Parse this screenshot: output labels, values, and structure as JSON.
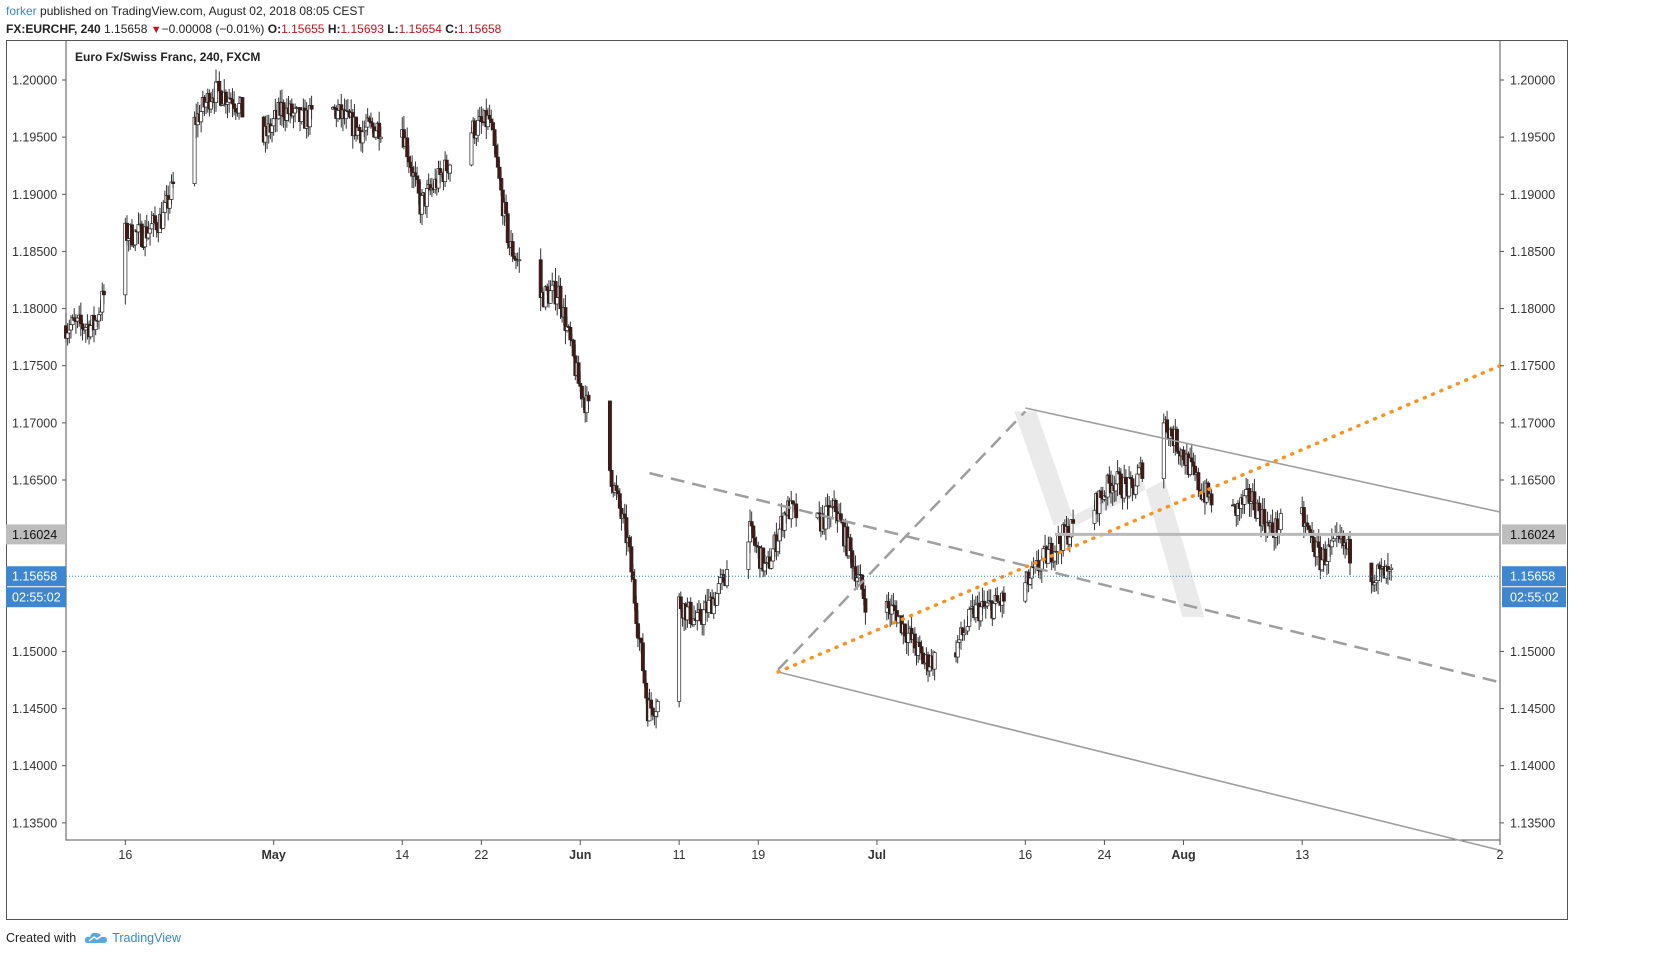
{
  "header": {
    "author": "forker",
    "published_text": "published on TradingView.com, August 02, 2018 08:05 CEST",
    "symbol": "FX:EURCHF, 240",
    "last": "1.15658",
    "change": "−0.00008 (−0.01%)",
    "o_label": "O:",
    "o_value": "1.15655",
    "h_label": "H:",
    "h_value": "1.15693",
    "l_label": "L:",
    "l_value": "1.15654",
    "c_label": "C:",
    "c_value": "1.15658"
  },
  "footer": {
    "created_with": "Created with",
    "brand": "TradingView",
    "logo_icon": "tradingview-cloud-icon"
  },
  "colors": {
    "bull": "#ffffff",
    "bear": "#4a1710",
    "wick": "#333333",
    "orange": "#f7931e",
    "channel": "#9e9e9e",
    "resistance": "#b9b9b9",
    "price_line": "#2f80c8",
    "price_badge": "#3e86cf",
    "level_badge": "#bdbdbd"
  },
  "chart_data": {
    "type": "candlestick",
    "title": "Euro Fx/Swiss Franc, 240, FXCM",
    "timeframe": "240",
    "x_labels": [
      "16",
      "May",
      "14",
      "22",
      "Jun",
      "11",
      "19",
      "Jul",
      "16",
      "24",
      "Aug",
      "13",
      "2"
    ],
    "y_ticks": [
      "1.20000",
      "1.19500",
      "1.19000",
      "1.18500",
      "1.18000",
      "1.17500",
      "1.17000",
      "1.16500",
      "1.16024",
      "1.15658",
      "1.15000",
      "1.14500",
      "1.14000",
      "1.13500"
    ],
    "ylim": [
      1.1335,
      1.2035
    ],
    "date_range": [
      "2018-04-10",
      "2018-09-02"
    ],
    "last_price": "1.15658",
    "countdown": "02:55:02",
    "level_line": "1.16024",
    "legend": "none",
    "grid": false,
    "price_path": [
      [
        "2018-04-10",
        1.1785
      ],
      [
        "2018-04-13",
        1.1785
      ],
      [
        "2018-04-16",
        1.1865
      ],
      [
        "2018-04-18",
        1.1865
      ],
      [
        "2018-04-20",
        1.188
      ],
      [
        "2018-04-23",
        1.196
      ],
      [
        "2018-04-25",
        1.199
      ],
      [
        "2018-04-27",
        1.1985
      ],
      [
        "2018-04-30",
        1.1945
      ],
      [
        "2018-05-02",
        1.1975
      ],
      [
        "2018-05-04",
        1.1965
      ],
      [
        "2018-05-07",
        1.1975
      ],
      [
        "2018-05-10",
        1.1955
      ],
      [
        "2018-05-14",
        1.1965
      ],
      [
        "2018-05-16",
        1.189
      ],
      [
        "2018-05-18",
        1.1915
      ],
      [
        "2018-05-21",
        1.1955
      ],
      [
        "2018-05-23",
        1.1965
      ],
      [
        "2018-05-25",
        1.1855
      ],
      [
        "2018-05-28",
        1.181
      ],
      [
        "2018-05-30",
        1.1815
      ],
      [
        "2018-06-01",
        1.1735
      ],
      [
        "2018-06-04",
        1.1665
      ],
      [
        "2018-06-06",
        1.1595
      ],
      [
        "2018-06-08",
        1.145
      ],
      [
        "2018-06-09",
        1.1455
      ],
      [
        "2018-06-11",
        1.1545
      ],
      [
        "2018-06-13",
        1.1525
      ],
      [
        "2018-06-15",
        1.155
      ],
      [
        "2018-06-18",
        1.161
      ],
      [
        "2018-06-20",
        1.157
      ],
      [
        "2018-06-22",
        1.1625
      ],
      [
        "2018-06-25",
        1.161
      ],
      [
        "2018-06-27",
        1.1625
      ],
      [
        "2018-06-30",
        1.1545
      ],
      [
        "2018-07-03",
        1.1535
      ],
      [
        "2018-07-06",
        1.149
      ],
      [
        "2018-07-09",
        1.15
      ],
      [
        "2018-07-11",
        1.1535
      ],
      [
        "2018-07-13",
        1.154
      ],
      [
        "2018-07-16",
        1.1555
      ],
      [
        "2018-07-18",
        1.158
      ],
      [
        "2018-07-20",
        1.16
      ],
      [
        "2018-07-23",
        1.1625
      ],
      [
        "2018-07-25",
        1.165
      ],
      [
        "2018-07-27",
        1.164
      ],
      [
        "2018-07-30",
        1.1705
      ],
      [
        "2018-08-01",
        1.1675
      ],
      [
        "2018-08-03",
        1.164
      ],
      [
        "2018-08-06",
        1.162
      ],
      [
        "2018-08-08",
        1.1635
      ],
      [
        "2018-08-10",
        1.1605
      ],
      [
        "2018-08-13",
        1.162
      ],
      [
        "2018-08-15",
        1.158
      ],
      [
        "2018-08-17",
        1.1595
      ],
      [
        "2018-08-20",
        1.157
      ],
      [
        "2018-08-22",
        1.1565
      ]
    ],
    "drawings": {
      "channel_upper": [
        [
          "2018-07-16",
          1.1713
        ],
        [
          "2018-09-02",
          1.1622
        ]
      ],
      "channel_lower": [
        [
          "2018-06-21",
          1.1482
        ],
        [
          "2018-09-02",
          1.1326
        ]
      ],
      "dashed_descending": [
        [
          "2018-06-08",
          1.1656
        ],
        [
          "2018-09-02",
          1.1473
        ]
      ],
      "dashed_ascending": [
        [
          "2018-06-21",
          1.1484
        ],
        [
          "2018-07-16",
          1.171
        ]
      ],
      "orange_trendline": [
        [
          "2018-06-21",
          1.1482
        ],
        [
          "2018-09-02",
          1.175
        ]
      ],
      "resistance_level": [
        [
          "2018-07-19",
          1.16024
        ],
        [
          "2018-09-02",
          1.16024
        ]
      ],
      "zigzag_band": [
        [
          "2018-07-16",
          1.171
        ],
        [
          "2018-07-20",
          1.161
        ],
        [
          "2018-07-29",
          1.165
        ],
        [
          "2018-08-02",
          1.153
        ]
      ]
    }
  }
}
